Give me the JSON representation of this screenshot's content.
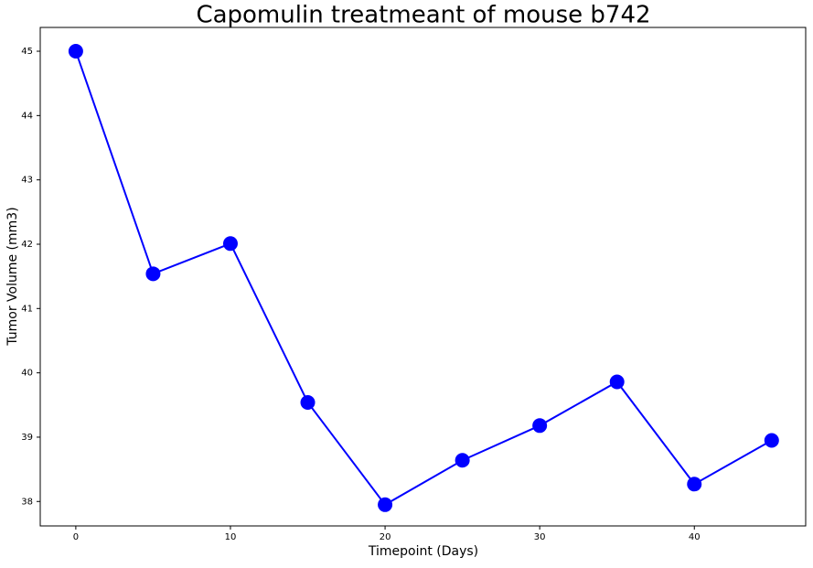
{
  "chart_data": {
    "type": "line",
    "title": "Capomulin treatmeant of mouse b742",
    "xlabel": "Timepoint (Days)",
    "ylabel": "Tumor Volume (mm3)",
    "x": [
      0,
      5,
      10,
      15,
      20,
      25,
      30,
      35,
      40,
      45
    ],
    "series": [
      {
        "color": "#0000ff",
        "values": [
          45,
          41.54,
          42.01,
          39.54,
          37.95,
          38.64,
          39.18,
          39.86,
          38.27,
          38.95
        ]
      }
    ],
    "xlim": [
      -2.3,
      47.2
    ],
    "xticks": [
      0,
      10,
      20,
      30,
      40
    ],
    "ylim": [
      37.62,
      45.37
    ],
    "yticks": [
      38,
      39,
      40,
      41,
      42,
      43,
      44,
      45
    ]
  }
}
